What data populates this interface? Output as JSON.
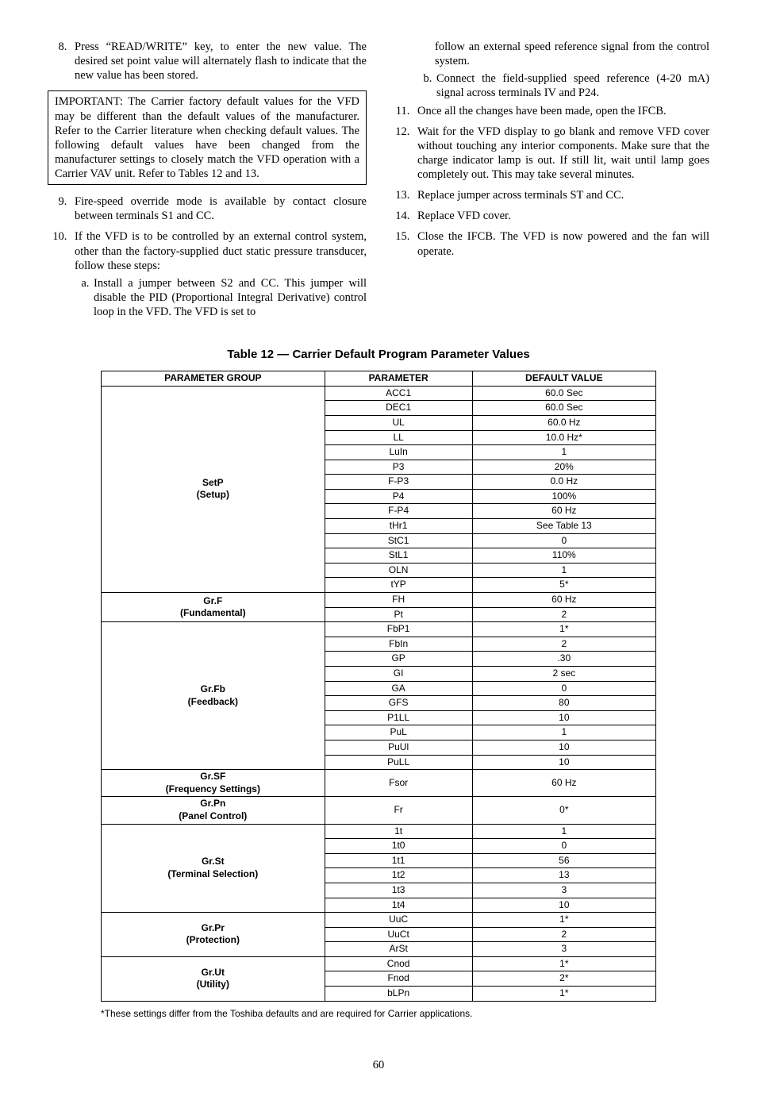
{
  "left_column": {
    "item8": "Press “READ/WRITE” key, to enter the new value. The desired set point value will alternately flash to indicate that the new value has been stored.",
    "important": "IMPORTANT: The Carrier factory default values for the VFD may be different than the default values of the manufacturer. Refer to the Carrier literature when checking default values. The following default values have been changed from the manufacturer settings to closely match the VFD operation with a Carrier VAV unit. Refer to Tables 12 and 13.",
    "item9": "Fire-speed override mode is available by contact closure between terminals S1 and CC.",
    "item10": "If the VFD is to be controlled by an external control system, other than the factory-supplied duct static pressure transducer, follow these steps:",
    "item10a": "Install a jumper between S2 and CC. This jumper will disable the PID (Proportional Integral Derivative) control loop in the VFD. The VFD is set to"
  },
  "right_column": {
    "item10a_cont": "follow an external speed reference signal from the control system.",
    "item10b": "Connect the field-supplied speed reference (4-20 mA) signal across terminals IV and P24.",
    "item11": "Once all the changes have been made, open the IFCB.",
    "item12": "Wait for the VFD display to go blank and remove VFD cover without touching any interior components. Make sure that the charge indicator lamp is out. If still lit, wait until lamp goes completely out. This may take several minutes.",
    "item13": "Replace jumper across terminals ST and CC.",
    "item14": "Replace VFD cover.",
    "item15": "Close the IFCB. The VFD is now powered and the fan will operate."
  },
  "table_title": "Table 12 — Carrier Default Program Parameter Values",
  "headers": {
    "c1": "PARAMETER GROUP",
    "c2": "PARAMETER",
    "c3": "DEFAULT VALUE"
  },
  "groups": [
    {
      "name": "SetP",
      "sub": "(Setup)",
      "rows": [
        [
          "ACC1",
          "60.0 Sec"
        ],
        [
          "DEC1",
          "60.0 Sec"
        ],
        [
          "UL",
          "60.0 Hz"
        ],
        [
          "LL",
          "10.0 Hz*"
        ],
        [
          "LuIn",
          "1"
        ],
        [
          "P3",
          "20%"
        ],
        [
          "F-P3",
          "0.0 Hz"
        ],
        [
          "P4",
          "100%"
        ],
        [
          "F-P4",
          "60 Hz"
        ],
        [
          "tHr1",
          "See Table 13"
        ],
        [
          "StC1",
          "0"
        ],
        [
          "StL1",
          "110%"
        ],
        [
          "OLN",
          "1"
        ],
        [
          "tYP",
          "5*"
        ]
      ]
    },
    {
      "name": "Gr.F",
      "sub": "(Fundamental)",
      "rows": [
        [
          "FH",
          "60 Hz"
        ],
        [
          "Pt",
          "2"
        ]
      ]
    },
    {
      "name": "Gr.Fb",
      "sub": "(Feedback)",
      "rows": [
        [
          "FbP1",
          "1*"
        ],
        [
          "FbIn",
          "2"
        ],
        [
          "GP",
          ".30"
        ],
        [
          "GI",
          "2 sec"
        ],
        [
          "GA",
          "0"
        ],
        [
          "GFS",
          "80"
        ],
        [
          "P1LL",
          "10"
        ],
        [
          "PuL",
          "1"
        ],
        [
          "PuUl",
          "10"
        ],
        [
          "PuLL",
          "10"
        ]
      ]
    },
    {
      "name": "Gr.SF",
      "sub": "(Frequency Settings)",
      "rows": [
        [
          "Fsor",
          "60 Hz"
        ]
      ]
    },
    {
      "name": "Gr.Pn",
      "sub": "(Panel Control)",
      "rows": [
        [
          "Fr",
          "0*"
        ]
      ]
    },
    {
      "name": "Gr.St",
      "sub": "(Terminal Selection)",
      "rows": [
        [
          "1t",
          "1"
        ],
        [
          "1t0",
          "0"
        ],
        [
          "1t1",
          "56"
        ],
        [
          "1t2",
          "13"
        ],
        [
          "1t3",
          "3"
        ],
        [
          "1t4",
          "10"
        ]
      ]
    },
    {
      "name": "Gr.Pr",
      "sub": "(Protection)",
      "rows": [
        [
          "UuC",
          "1*"
        ],
        [
          "UuCt",
          "2"
        ],
        [
          "ArSt",
          "3"
        ]
      ]
    },
    {
      "name": "Gr.Ut",
      "sub": "(Utility)",
      "rows": [
        [
          "Cnod",
          "1*"
        ],
        [
          "Fnod",
          "2*"
        ],
        [
          "bLPn",
          "1*"
        ]
      ]
    }
  ],
  "footnote": "*These settings differ from the Toshiba defaults and are required for Carrier applications.",
  "page_number": "60"
}
